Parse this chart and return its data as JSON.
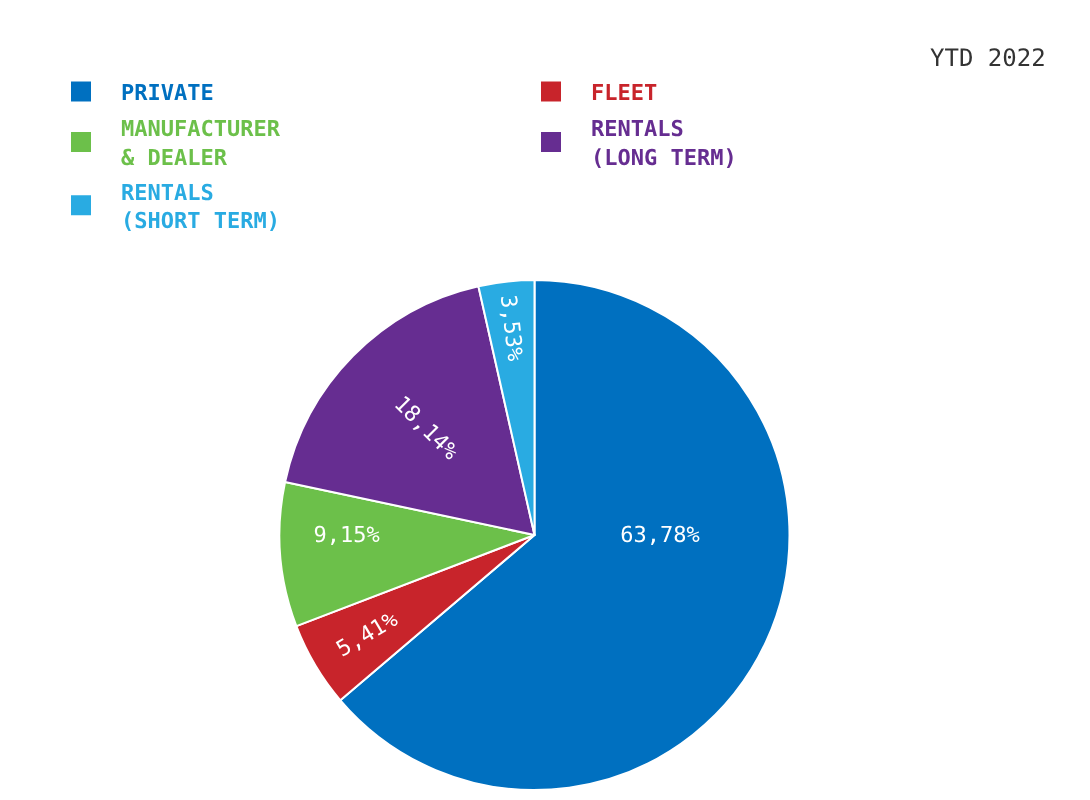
{
  "chart_data": {
    "type": "pie",
    "legend": "top left",
    "annotations": [
      "YTD 2022"
    ],
    "categories": [
      "PRIVATE",
      "FLEET",
      "MANUFACTURER\n& DEALER",
      "RENTALS\n(LONG TERM)",
      "RENTALS\n(SHORT TERM)"
    ],
    "values": [
      63.78,
      5.41,
      9.15,
      18.14,
      3.53
    ],
    "value_labels": [
      "63,78%",
      "5,41%",
      "9,15%",
      "18,14%",
      "3,53%"
    ],
    "colors": [
      "#0070c0",
      "#c8242b",
      "#6cc04a",
      "#662d91",
      "#29abe2"
    ]
  }
}
